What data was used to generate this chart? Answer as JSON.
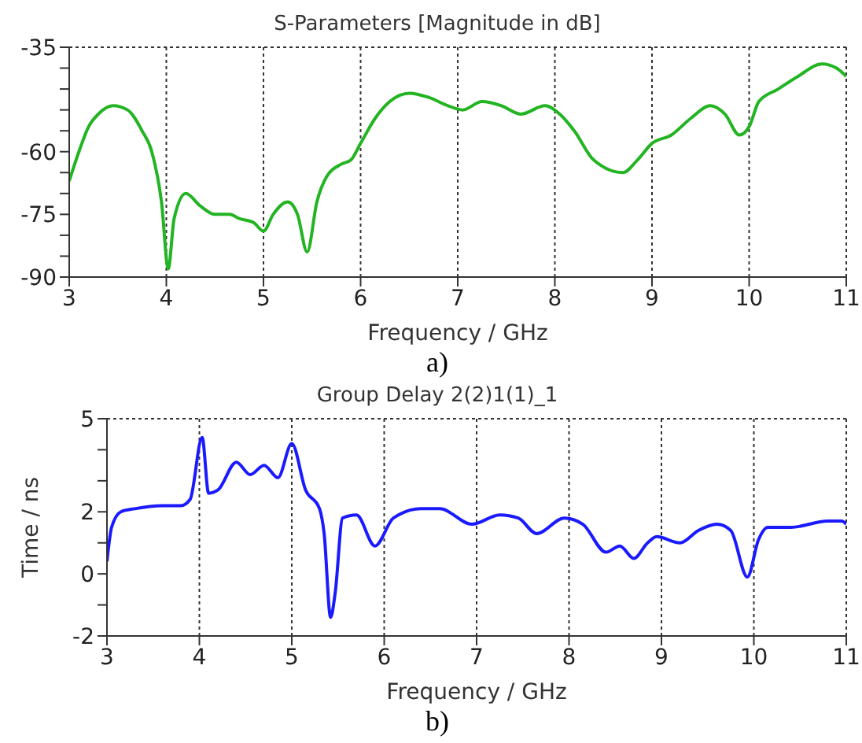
{
  "chart_data": [
    {
      "type": "line",
      "title": "S-Parameters [Magnitude in dB]",
      "xlabel": "Frequency / GHz",
      "annotations": [
        "a)"
      ],
      "grid": true,
      "marker": "none",
      "line_style": "solid",
      "xlim": [
        3,
        11
      ],
      "xticks": [
        3,
        4,
        5,
        6,
        7,
        8,
        9,
        10,
        11
      ],
      "ylim": [
        -90,
        -35
      ],
      "yticks": [
        -90,
        {
          "value": -85,
          "label": null
        },
        {
          "value": -80,
          "label": null
        },
        -75,
        {
          "value": -70,
          "label": null
        },
        {
          "value": -65,
          "label": null
        },
        -60,
        {
          "value": -55,
          "label": null
        },
        {
          "value": -50,
          "label": null
        },
        {
          "value": -45,
          "label": null
        },
        {
          "value": -40,
          "label": null
        },
        -35
      ],
      "series": [
        {
          "color": "#22b422",
          "x": [
            3.0,
            3.1,
            3.2,
            3.3,
            3.45,
            3.6,
            3.75,
            3.85,
            3.95,
            4.02,
            4.08,
            4.2,
            4.35,
            4.5,
            4.65,
            4.75,
            4.9,
            5.0,
            5.1,
            5.25,
            5.35,
            5.45,
            5.55,
            5.65,
            5.8,
            5.9,
            6.0,
            6.15,
            6.3,
            6.5,
            6.7,
            6.9,
            7.05,
            7.25,
            7.45,
            7.65,
            7.9,
            8.05,
            8.2,
            8.4,
            8.7,
            8.85,
            9.0,
            9.2,
            9.4,
            9.6,
            9.75,
            9.9,
            10.0,
            10.1,
            10.3,
            10.5,
            10.75,
            10.9,
            11.0
          ],
          "values": [
            -67,
            -60,
            -54,
            -51,
            -49,
            -50,
            -55,
            -60,
            -72,
            -88,
            -76,
            -70,
            -73,
            -75,
            -75,
            -76,
            -77,
            -79,
            -75,
            -72,
            -75,
            -84,
            -72,
            -66,
            -63,
            -62,
            -58,
            -52,
            -48,
            -46,
            -47,
            -49,
            -50,
            -48,
            -49,
            -51,
            -49,
            -51,
            -55,
            -62,
            -65,
            -62,
            -58,
            -56,
            -52,
            -49,
            -51,
            -56,
            -54,
            -48,
            -45,
            -42,
            -39,
            -40,
            -42
          ]
        }
      ]
    },
    {
      "type": "line",
      "title": "Group Delay 2(2)1(1)_1",
      "xlabel": "Frequency / GHz",
      "ylabel": "Time / ns",
      "annotations": [
        "b)"
      ],
      "grid": true,
      "marker": "none",
      "line_style": "solid",
      "xlim": [
        3,
        11
      ],
      "xticks": [
        3,
        4,
        5,
        6,
        7,
        8,
        9,
        10,
        11
      ],
      "ylim": [
        -2,
        5
      ],
      "yticks": [
        -2,
        {
          "value": -1,
          "label": null
        },
        0,
        {
          "value": 1,
          "label": null
        },
        2,
        {
          "value": 3,
          "label": null
        },
        {
          "value": 4,
          "label": null
        },
        5
      ],
      "series": [
        {
          "color": "#1a1aff",
          "x": [
            3.0,
            3.05,
            3.15,
            3.3,
            3.6,
            3.8,
            3.9,
            4.03,
            4.1,
            4.2,
            4.4,
            4.55,
            4.7,
            4.85,
            5.0,
            5.15,
            5.3,
            5.35,
            5.42,
            5.47,
            5.55,
            5.7,
            5.9,
            6.1,
            6.4,
            6.6,
            6.95,
            7.25,
            7.45,
            7.65,
            7.95,
            8.15,
            8.4,
            8.55,
            8.7,
            8.85,
            8.95,
            9.2,
            9.4,
            9.6,
            9.75,
            9.93,
            10.05,
            10.15,
            10.4,
            10.8,
            10.95,
            11.0
          ],
          "values": [
            0.4,
            1.5,
            2.0,
            2.1,
            2.2,
            2.2,
            2.4,
            4.4,
            2.6,
            2.7,
            3.6,
            3.2,
            3.5,
            3.1,
            4.2,
            2.7,
            2.1,
            1.3,
            -1.4,
            -0.6,
            1.8,
            1.9,
            0.9,
            1.8,
            2.1,
            2.1,
            1.6,
            1.9,
            1.8,
            1.3,
            1.8,
            1.6,
            0.7,
            0.9,
            0.5,
            1.0,
            1.2,
            1.0,
            1.4,
            1.6,
            1.4,
            -0.1,
            1.1,
            1.5,
            1.5,
            1.7,
            1.7,
            1.6
          ]
        }
      ]
    }
  ]
}
